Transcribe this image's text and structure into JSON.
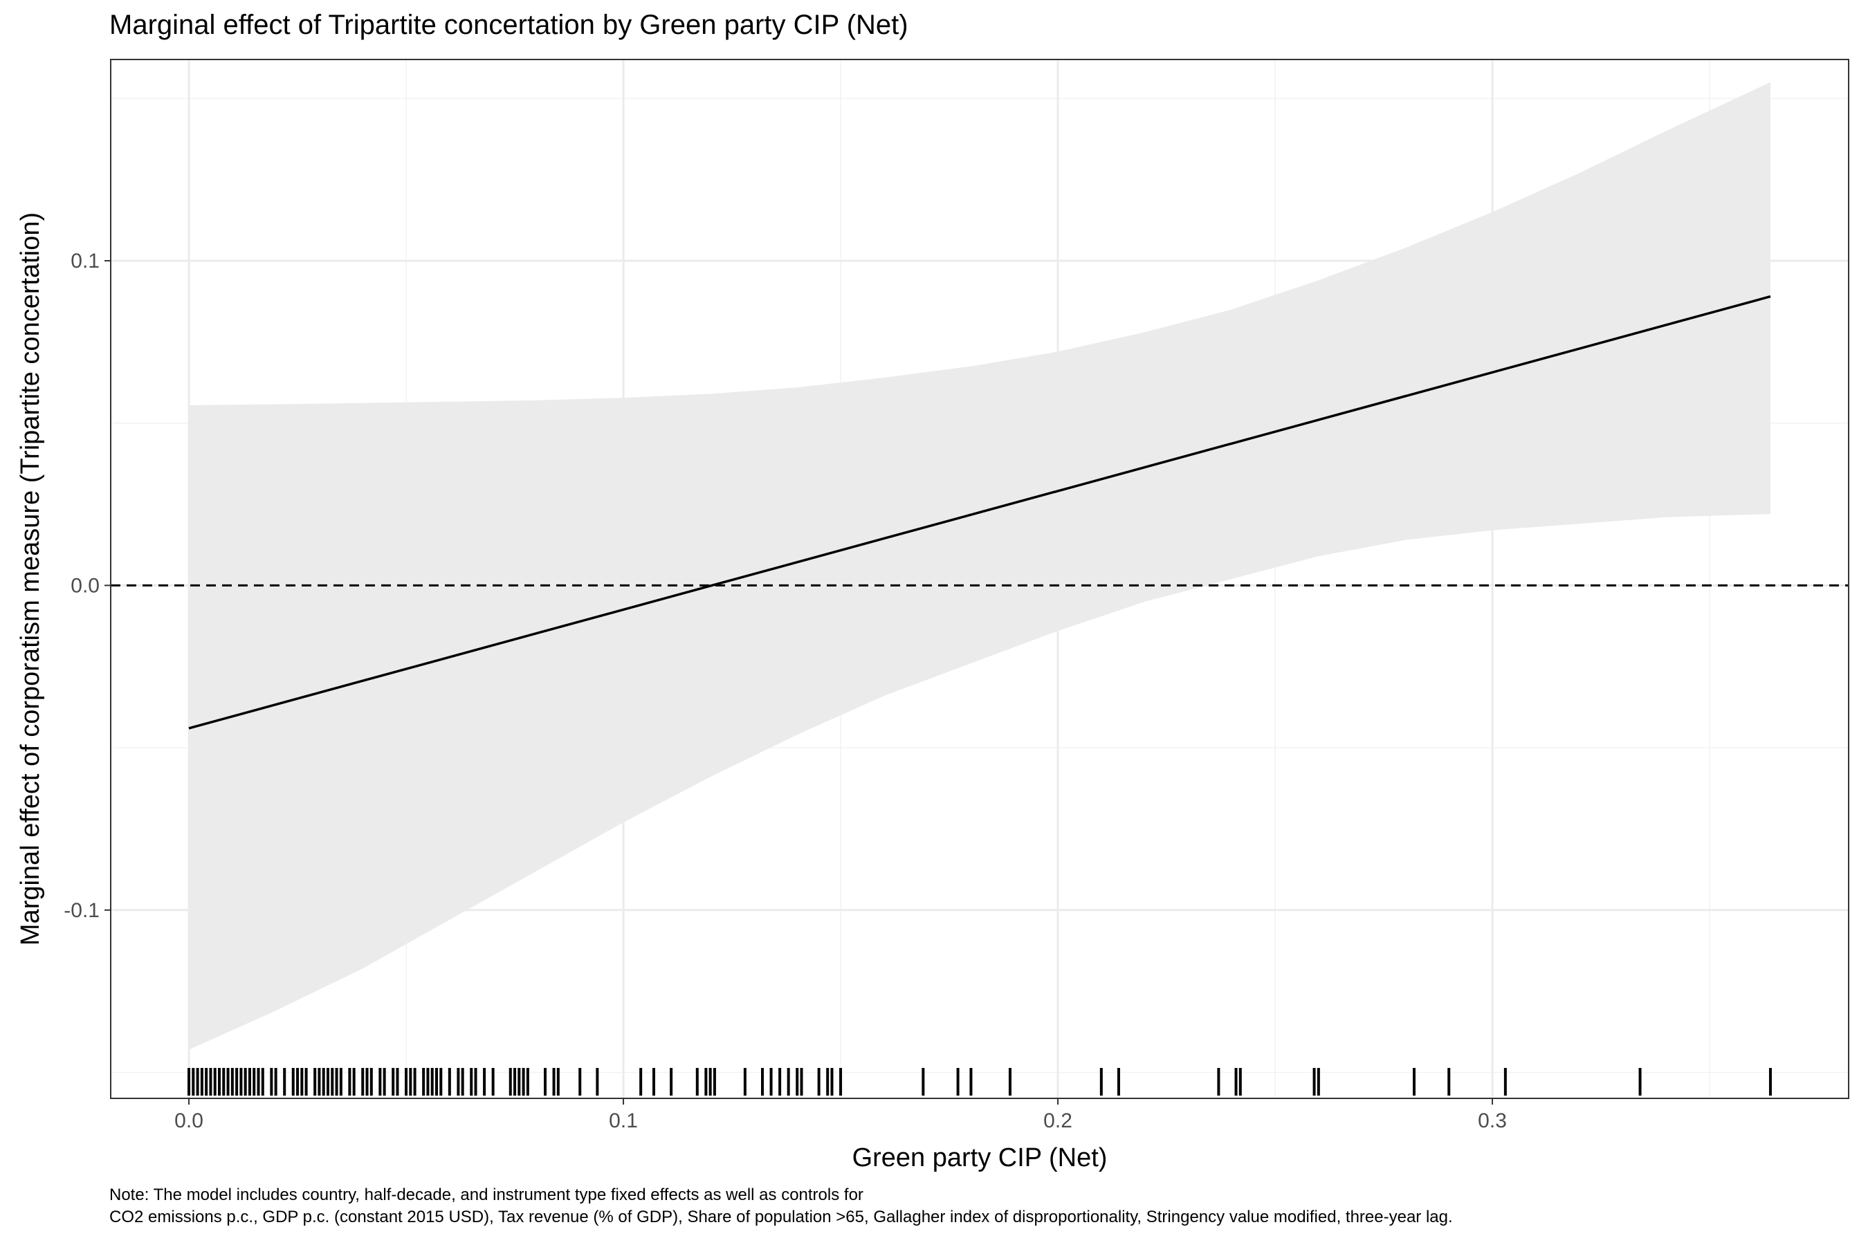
{
  "chart_data": {
    "type": "line",
    "title": "Marginal effect of Tripartite concertation by Green party CIP (Net)",
    "xlabel": "Green party CIP (Net)",
    "ylabel": "Marginal effect of corporatism measure (Tripartite concertation)",
    "xlim": [
      -0.018,
      0.382
    ],
    "ylim": [
      -0.158,
      0.162
    ],
    "x_ticks": [
      0.0,
      0.1,
      0.2,
      0.3
    ],
    "x_tick_labels": [
      "0.0",
      "0.1",
      "0.2",
      "0.3"
    ],
    "y_ticks": [
      -0.1,
      0.0,
      0.1
    ],
    "y_tick_labels": [
      "-0.1",
      "0.0",
      "0.1"
    ],
    "grid": true,
    "reference_line": {
      "y": 0.0,
      "style": "dashed"
    },
    "series": [
      {
        "type": "line",
        "x": [
          0.0,
          0.364
        ],
        "y": [
          -0.044,
          0.089
        ]
      },
      {
        "type": "ribbon",
        "x": [
          0.0,
          0.02,
          0.04,
          0.06,
          0.08,
          0.1,
          0.12,
          0.14,
          0.16,
          0.18,
          0.2,
          0.22,
          0.24,
          0.26,
          0.28,
          0.3,
          0.32,
          0.34,
          0.364
        ],
        "upper": [
          0.0555,
          0.0558,
          0.0562,
          0.0566,
          0.057,
          0.0578,
          0.059,
          0.061,
          0.064,
          0.0675,
          0.072,
          0.078,
          0.085,
          0.094,
          0.104,
          0.115,
          0.127,
          0.14,
          0.155
        ],
        "lower": [
          -0.143,
          -0.131,
          -0.118,
          -0.103,
          -0.088,
          -0.073,
          -0.059,
          -0.046,
          -0.034,
          -0.024,
          -0.014,
          -0.005,
          0.002,
          0.009,
          0.014,
          0.017,
          0.019,
          0.021,
          0.022
        ]
      }
    ],
    "rug_x": [
      0.0,
      0.001,
      0.002,
      0.003,
      0.004,
      0.005,
      0.006,
      0.007,
      0.008,
      0.009,
      0.01,
      0.011,
      0.012,
      0.013,
      0.014,
      0.015,
      0.016,
      0.017,
      0.019,
      0.02,
      0.022,
      0.024,
      0.025,
      0.026,
      0.027,
      0.029,
      0.03,
      0.031,
      0.032,
      0.033,
      0.034,
      0.035,
      0.037,
      0.038,
      0.04,
      0.041,
      0.042,
      0.044,
      0.045,
      0.047,
      0.048,
      0.05,
      0.051,
      0.052,
      0.054,
      0.055,
      0.056,
      0.057,
      0.058,
      0.06,
      0.062,
      0.063,
      0.065,
      0.066,
      0.068,
      0.07,
      0.074,
      0.075,
      0.076,
      0.077,
      0.078,
      0.082,
      0.084,
      0.085,
      0.09,
      0.094,
      0.104,
      0.107,
      0.111,
      0.117,
      0.119,
      0.12,
      0.121,
      0.128,
      0.132,
      0.134,
      0.136,
      0.138,
      0.14,
      0.141,
      0.145,
      0.147,
      0.148,
      0.15,
      0.169,
      0.177,
      0.18,
      0.189,
      0.21,
      0.214,
      0.237,
      0.241,
      0.242,
      0.259,
      0.26,
      0.282,
      0.29,
      0.303,
      0.334,
      0.364
    ]
  },
  "note": {
    "line1": "Note: The model includes country, half-decade, and instrument type fixed effects as well as controls for",
    "line2": "CO2 emissions p.c., GDP p.c. (constant 2015 USD), Tax revenue (% of GDP), Share of population >65, Gallagher index of disproportionality, Stringency value modified, three-year lag."
  }
}
